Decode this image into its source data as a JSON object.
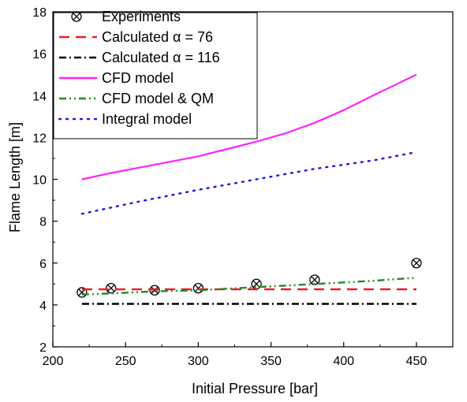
{
  "chart_data": {
    "type": "line",
    "title": "",
    "xlabel": "Initial Pressure [bar]",
    "ylabel": "Flame Length [m]",
    "xlim": [
      200,
      475
    ],
    "ylim": [
      2,
      18
    ],
    "xticks": [
      200,
      250,
      300,
      350,
      400,
      450
    ],
    "yticks": [
      2,
      4,
      6,
      8,
      10,
      12,
      14,
      16,
      18
    ],
    "grid": false,
    "legend_position": "top-left",
    "series": [
      {
        "name": "Experiments",
        "kind": "marker",
        "marker": "circle-x",
        "color": "#000000",
        "x": [
          220,
          240,
          270,
          300,
          340,
          380,
          450
        ],
        "y": [
          4.6,
          4.8,
          4.7,
          4.8,
          5.0,
          5.2,
          6.0
        ]
      },
      {
        "name": "Calculated α = 76",
        "kind": "line",
        "dash": "dash",
        "color": "#e8202a",
        "x": [
          220,
          450
        ],
        "y": [
          4.75,
          4.75
        ]
      },
      {
        "name": "Calculated α = 116",
        "kind": "line",
        "dash": "dashdot",
        "color": "#000000",
        "x": [
          220,
          450
        ],
        "y": [
          4.05,
          4.05
        ]
      },
      {
        "name": "CFD model",
        "kind": "line",
        "dash": "solid",
        "color": "#ff22ff",
        "x": [
          220,
          240,
          270,
          300,
          320,
          340,
          360,
          380,
          400,
          420,
          450
        ],
        "y": [
          10.0,
          10.3,
          10.7,
          11.1,
          11.45,
          11.8,
          12.2,
          12.7,
          13.3,
          14.0,
          15.0
        ]
      },
      {
        "name": "CFD model & QM",
        "kind": "line",
        "dash": "dashdotdot",
        "color": "#218a21",
        "x": [
          220,
          240,
          270,
          300,
          340,
          380,
          420,
          450
        ],
        "y": [
          4.5,
          4.55,
          4.65,
          4.7,
          4.85,
          5.0,
          5.15,
          5.3
        ]
      },
      {
        "name": "Integral model",
        "kind": "line",
        "dash": "dot",
        "color": "#1c1cdb",
        "x": [
          220,
          260,
          300,
          340,
          380,
          420,
          450
        ],
        "y": [
          8.35,
          8.95,
          9.5,
          10.0,
          10.5,
          10.9,
          11.3
        ]
      }
    ]
  }
}
